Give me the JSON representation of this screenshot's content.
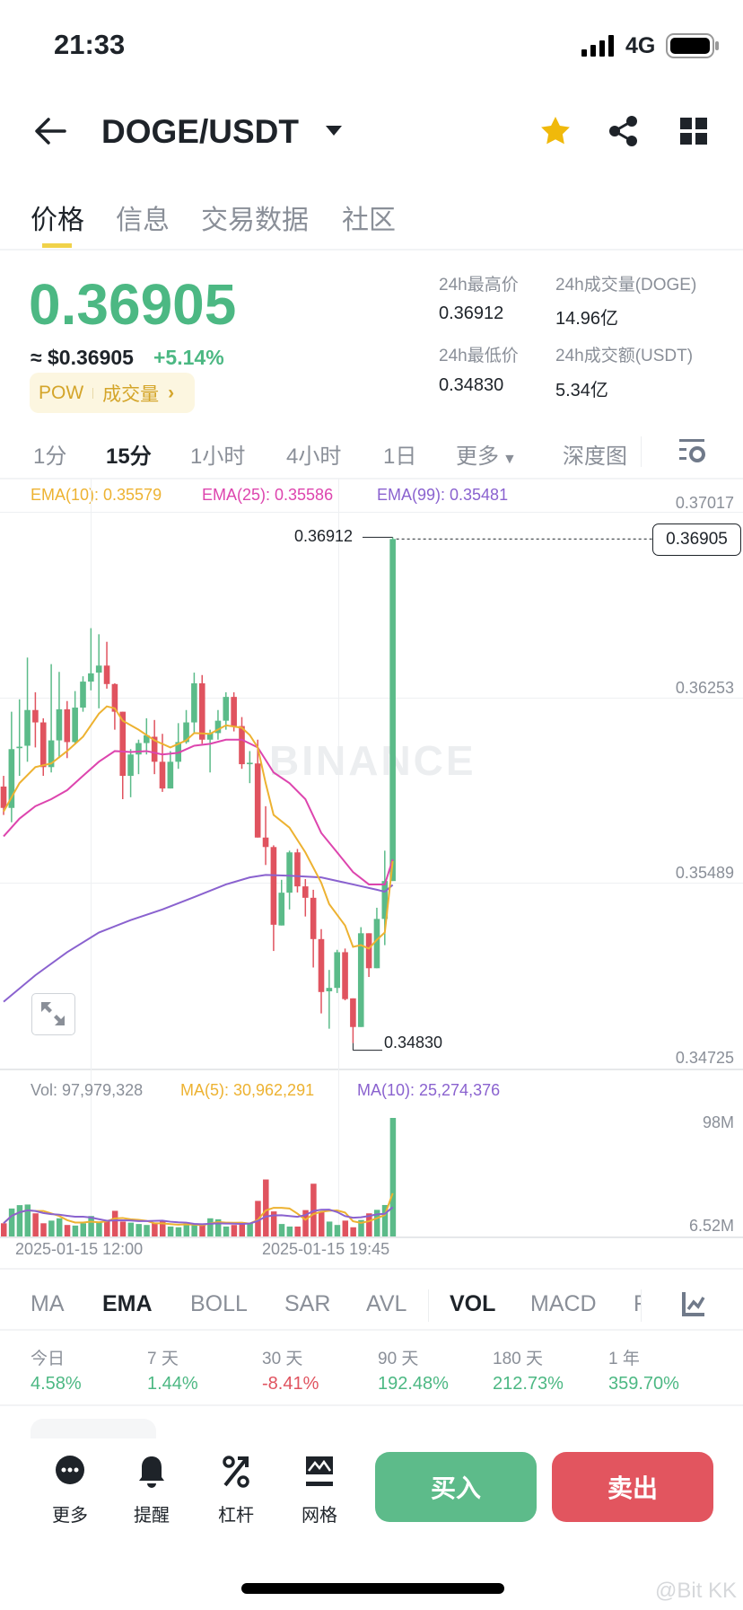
{
  "status_bar": {
    "time": "21:33",
    "network": "4G",
    "battery_icon": "battery-full-icon",
    "signal_icon": "signal-icon"
  },
  "header": {
    "title": "DOGE/USDT",
    "icons": [
      "back-arrow-icon",
      "caret-down-icon",
      "star-icon",
      "share-icon",
      "grid-icon"
    ],
    "star_color": "#F0B90B"
  },
  "tabs": {
    "items": [
      "价格",
      "信息",
      "交易数据",
      "社区"
    ],
    "active": 0
  },
  "ticker": {
    "price": "0.36905",
    "approx_usd": "≈ $0.36905",
    "change": "+5.14%",
    "tags": [
      "POW",
      "成交量"
    ],
    "high_label": "24h最高价",
    "high": "0.36912",
    "vol_base_label": "24h成交量(DOGE)",
    "vol_base": "14.96亿",
    "low_label": "24h最低价",
    "low": "0.34830",
    "vol_quote_label": "24h成交额(USDT)",
    "vol_quote": "5.34亿"
  },
  "intervals": {
    "items": [
      "1分",
      "15分",
      "1小时",
      "4小时",
      "1日",
      "更多"
    ],
    "active": "15分",
    "depth": "深度图"
  },
  "chart": {
    "ema_legend": {
      "ema10": "EMA(10): 0.35579",
      "ema25": "EMA(25): 0.35586",
      "ema99": "EMA(99): 0.35481"
    },
    "price_axis": [
      "0.37017",
      "0.36253",
      "0.35489",
      "0.34725"
    ],
    "high_marker": "0.36912",
    "low_marker": "0.34830",
    "current_price_tag": "0.36905",
    "watermark": "BINANCE",
    "colors": {
      "up": "#5BBB89",
      "down": "#E0535F",
      "ema10": "#EDB231",
      "ema25": "#DD45AE",
      "ema99": "#8A62CF"
    },
    "candles": [
      [
        0.35886,
        0.3593,
        0.35769,
        0.35798
      ],
      [
        0.35798,
        0.36194,
        0.35739,
        0.3604
      ],
      [
        0.36044,
        0.36245,
        0.3593,
        0.3605
      ],
      [
        0.36054,
        0.36417,
        0.35988,
        0.36201
      ],
      [
        0.36201,
        0.36274,
        0.36047,
        0.3615
      ],
      [
        0.3615,
        0.36167,
        0.3593,
        0.35966
      ],
      [
        0.35966,
        0.3639,
        0.35944,
        0.36076
      ],
      [
        0.36076,
        0.36358,
        0.36003,
        0.36204
      ],
      [
        0.36204,
        0.36238,
        0.36003,
        0.36069
      ],
      [
        0.36069,
        0.36279,
        0.36062,
        0.36211
      ],
      [
        0.36211,
        0.3634,
        0.36194,
        0.36318
      ],
      [
        0.36318,
        0.36538,
        0.36282,
        0.36352
      ],
      [
        0.36355,
        0.36513,
        0.36208,
        0.36384
      ],
      [
        0.36384,
        0.36482,
        0.36289,
        0.36308
      ],
      [
        0.36308,
        0.36311,
        0.3612,
        0.36194
      ],
      [
        0.36194,
        0.36194,
        0.35834,
        0.3593
      ],
      [
        0.3593,
        0.3604,
        0.35842,
        0.36018
      ],
      [
        0.36018,
        0.36079,
        0.35937,
        0.36065
      ],
      [
        0.36065,
        0.36167,
        0.36018,
        0.36097
      ],
      [
        0.36091,
        0.3616,
        0.35937,
        0.35988
      ],
      [
        0.35988,
        0.36103,
        0.35864,
        0.35878
      ],
      [
        0.35878,
        0.36032,
        0.35878,
        0.35988
      ],
      [
        0.35988,
        0.36147,
        0.35959,
        0.36069
      ],
      [
        0.36069,
        0.36201,
        0.36062,
        0.3615
      ],
      [
        0.3615,
        0.36355,
        0.36106,
        0.36311
      ],
      [
        0.36311,
        0.36345,
        0.36062,
        0.36079
      ],
      [
        0.36079,
        0.3612,
        0.35944,
        0.36106
      ],
      [
        0.36106,
        0.36201,
        0.36079,
        0.36157
      ],
      [
        0.36157,
        0.36274,
        0.3612,
        0.36255
      ],
      [
        0.36255,
        0.36274,
        0.36113,
        0.36135
      ],
      [
        0.36135,
        0.36172,
        0.35959,
        0.35978
      ],
      [
        0.35978,
        0.36032,
        0.359,
        0.35984
      ],
      [
        0.35981,
        0.36079,
        0.35676,
        0.35676
      ],
      [
        0.35676,
        0.35805,
        0.35563,
        0.35637
      ],
      [
        0.35637,
        0.35644,
        0.35209,
        0.35317
      ],
      [
        0.35314,
        0.35502,
        0.35314,
        0.35449
      ],
      [
        0.35449,
        0.35622,
        0.3538,
        0.35615
      ],
      [
        0.35615,
        0.35629,
        0.3545,
        0.35475
      ],
      [
        0.35475,
        0.35505,
        0.35351,
        0.35428
      ],
      [
        0.35428,
        0.35461,
        0.35141,
        0.35258
      ],
      [
        0.35258,
        0.35299,
        0.34952,
        0.3504
      ],
      [
        0.35043,
        0.35131,
        0.34889,
        0.35057
      ],
      [
        0.35057,
        0.35214,
        0.35036,
        0.35204
      ],
      [
        0.35204,
        0.35219,
        0.35006,
        0.35011
      ],
      [
        0.35014,
        0.35014,
        0.3483,
        0.34896
      ],
      [
        0.34896,
        0.35307,
        0.34896,
        0.35282
      ],
      [
        0.35282,
        0.35282,
        0.35102,
        0.35138
      ],
      [
        0.35138,
        0.35387,
        0.35138,
        0.35341
      ],
      [
        0.35341,
        0.35622,
        0.35233,
        0.35497
      ],
      [
        0.35497,
        0.36912,
        0.35497,
        0.36905
      ]
    ],
    "ema10": [
      [
        0,
        0.35783
      ],
      [
        2,
        0.359
      ],
      [
        4,
        0.35966
      ],
      [
        6,
        0.35981
      ],
      [
        8,
        0.36032
      ],
      [
        10,
        0.36091
      ],
      [
        12,
        0.36186
      ],
      [
        13,
        0.36216
      ],
      [
        14,
        0.36208
      ],
      [
        15,
        0.36157
      ],
      [
        17,
        0.3612
      ],
      [
        19,
        0.36076
      ],
      [
        21,
        0.36047
      ],
      [
        23,
        0.36076
      ],
      [
        24,
        0.36106
      ],
      [
        26,
        0.36103
      ],
      [
        28,
        0.36138
      ],
      [
        30,
        0.36128
      ],
      [
        31,
        0.36098
      ],
      [
        32,
        0.36047
      ],
      [
        33,
        0.359
      ],
      [
        34,
        0.35769
      ],
      [
        36,
        0.35717
      ],
      [
        38,
        0.35615
      ],
      [
        40,
        0.3549
      ],
      [
        41,
        0.35402
      ],
      [
        43,
        0.35314
      ],
      [
        44,
        0.35226
      ],
      [
        45,
        0.35233
      ],
      [
        46,
        0.35219
      ],
      [
        47,
        0.35255
      ],
      [
        48,
        0.35285
      ],
      [
        49,
        0.35579
      ]
    ],
    "ema25": [
      [
        0,
        0.35681
      ],
      [
        2,
        0.35754
      ],
      [
        4,
        0.35805
      ],
      [
        6,
        0.35834
      ],
      [
        8,
        0.35871
      ],
      [
        10,
        0.3593
      ],
      [
        12,
        0.35988
      ],
      [
        14,
        0.36032
      ],
      [
        16,
        0.36028
      ],
      [
        18,
        0.36032
      ],
      [
        20,
        0.36018
      ],
      [
        22,
        0.36025
      ],
      [
        24,
        0.36054
      ],
      [
        26,
        0.36062
      ],
      [
        28,
        0.36079
      ],
      [
        30,
        0.36079
      ],
      [
        32,
        0.36047
      ],
      [
        34,
        0.35944
      ],
      [
        36,
        0.359
      ],
      [
        38,
        0.35834
      ],
      [
        40,
        0.35695
      ],
      [
        42,
        0.35615
      ],
      [
        44,
        0.35534
      ],
      [
        46,
        0.35483
      ],
      [
        48,
        0.35483
      ],
      [
        49,
        0.35586
      ]
    ],
    "ema99": [
      [
        0,
        0.35
      ],
      [
        4,
        0.35109
      ],
      [
        8,
        0.35204
      ],
      [
        12,
        0.35285
      ],
      [
        16,
        0.35336
      ],
      [
        20,
        0.3538
      ],
      [
        24,
        0.35431
      ],
      [
        28,
        0.35483
      ],
      [
        31,
        0.35512
      ],
      [
        33,
        0.35522
      ],
      [
        36,
        0.35519
      ],
      [
        40,
        0.35512
      ],
      [
        44,
        0.35483
      ],
      [
        47,
        0.35461
      ],
      [
        48,
        0.35453
      ],
      [
        49,
        0.35481
      ]
    ],
    "volume_legend": {
      "vol": "Vol: 97,979,328",
      "ma5": "MA(5): 30,962,291",
      "ma10": "MA(10): 25,274,376"
    },
    "volume_axis": [
      "98M",
      "6.52M"
    ],
    "volumes_m": [
      10.9,
      23.1,
      25.9,
      26.4,
      19.1,
      10.9,
      13.1,
      15.0,
      9.5,
      9.0,
      10.9,
      16.9,
      12.3,
      13.6,
      21.2,
      12.3,
      11.4,
      10.3,
      9.5,
      10.9,
      12.3,
      8.2,
      7.6,
      10.9,
      10.3,
      9.5,
      15.0,
      14.2,
      8.2,
      9.5,
      10.3,
      10.9,
      29.4,
      47.1,
      20.7,
      10.3,
      8.2,
      8.2,
      21.8,
      43.6,
      20.4,
      12.3,
      9.5,
      13.1,
      7.6,
      13.6,
      19.1,
      22.0,
      26.0,
      97.98
    ],
    "time_axis": [
      "2025-01-15 12:00",
      "2025-01-15 19:45"
    ]
  },
  "indicators": {
    "items": [
      "MA",
      "EMA",
      "BOLL",
      "SAR",
      "AVL",
      "VOL",
      "MACD",
      "R"
    ],
    "active": [
      "EMA",
      "VOL"
    ]
  },
  "performance": [
    {
      "label": "今日",
      "value": "4.58%",
      "dir": "up"
    },
    {
      "label": "7 天",
      "value": "1.44%",
      "dir": "up"
    },
    {
      "label": "30 天",
      "value": "-8.41%",
      "dir": "down"
    },
    {
      "label": "90 天",
      "value": "192.48%",
      "dir": "up"
    },
    {
      "label": "180 天",
      "value": "212.73%",
      "dir": "up"
    },
    {
      "label": "1 年",
      "value": "359.70%",
      "dir": "up"
    }
  ],
  "bottom_bar": {
    "items": [
      {
        "label": "更多",
        "icon": "more-icon"
      },
      {
        "label": "提醒",
        "icon": "bell-icon"
      },
      {
        "label": "杠杆",
        "icon": "percent-icon"
      },
      {
        "label": "网格",
        "icon": "grid-trading-icon"
      }
    ],
    "buy": "买入",
    "sell": "卖出",
    "buy_color": "#5DBB8A",
    "sell_color": "#E2555F"
  },
  "watermark_bottom": "@Bit KK"
}
